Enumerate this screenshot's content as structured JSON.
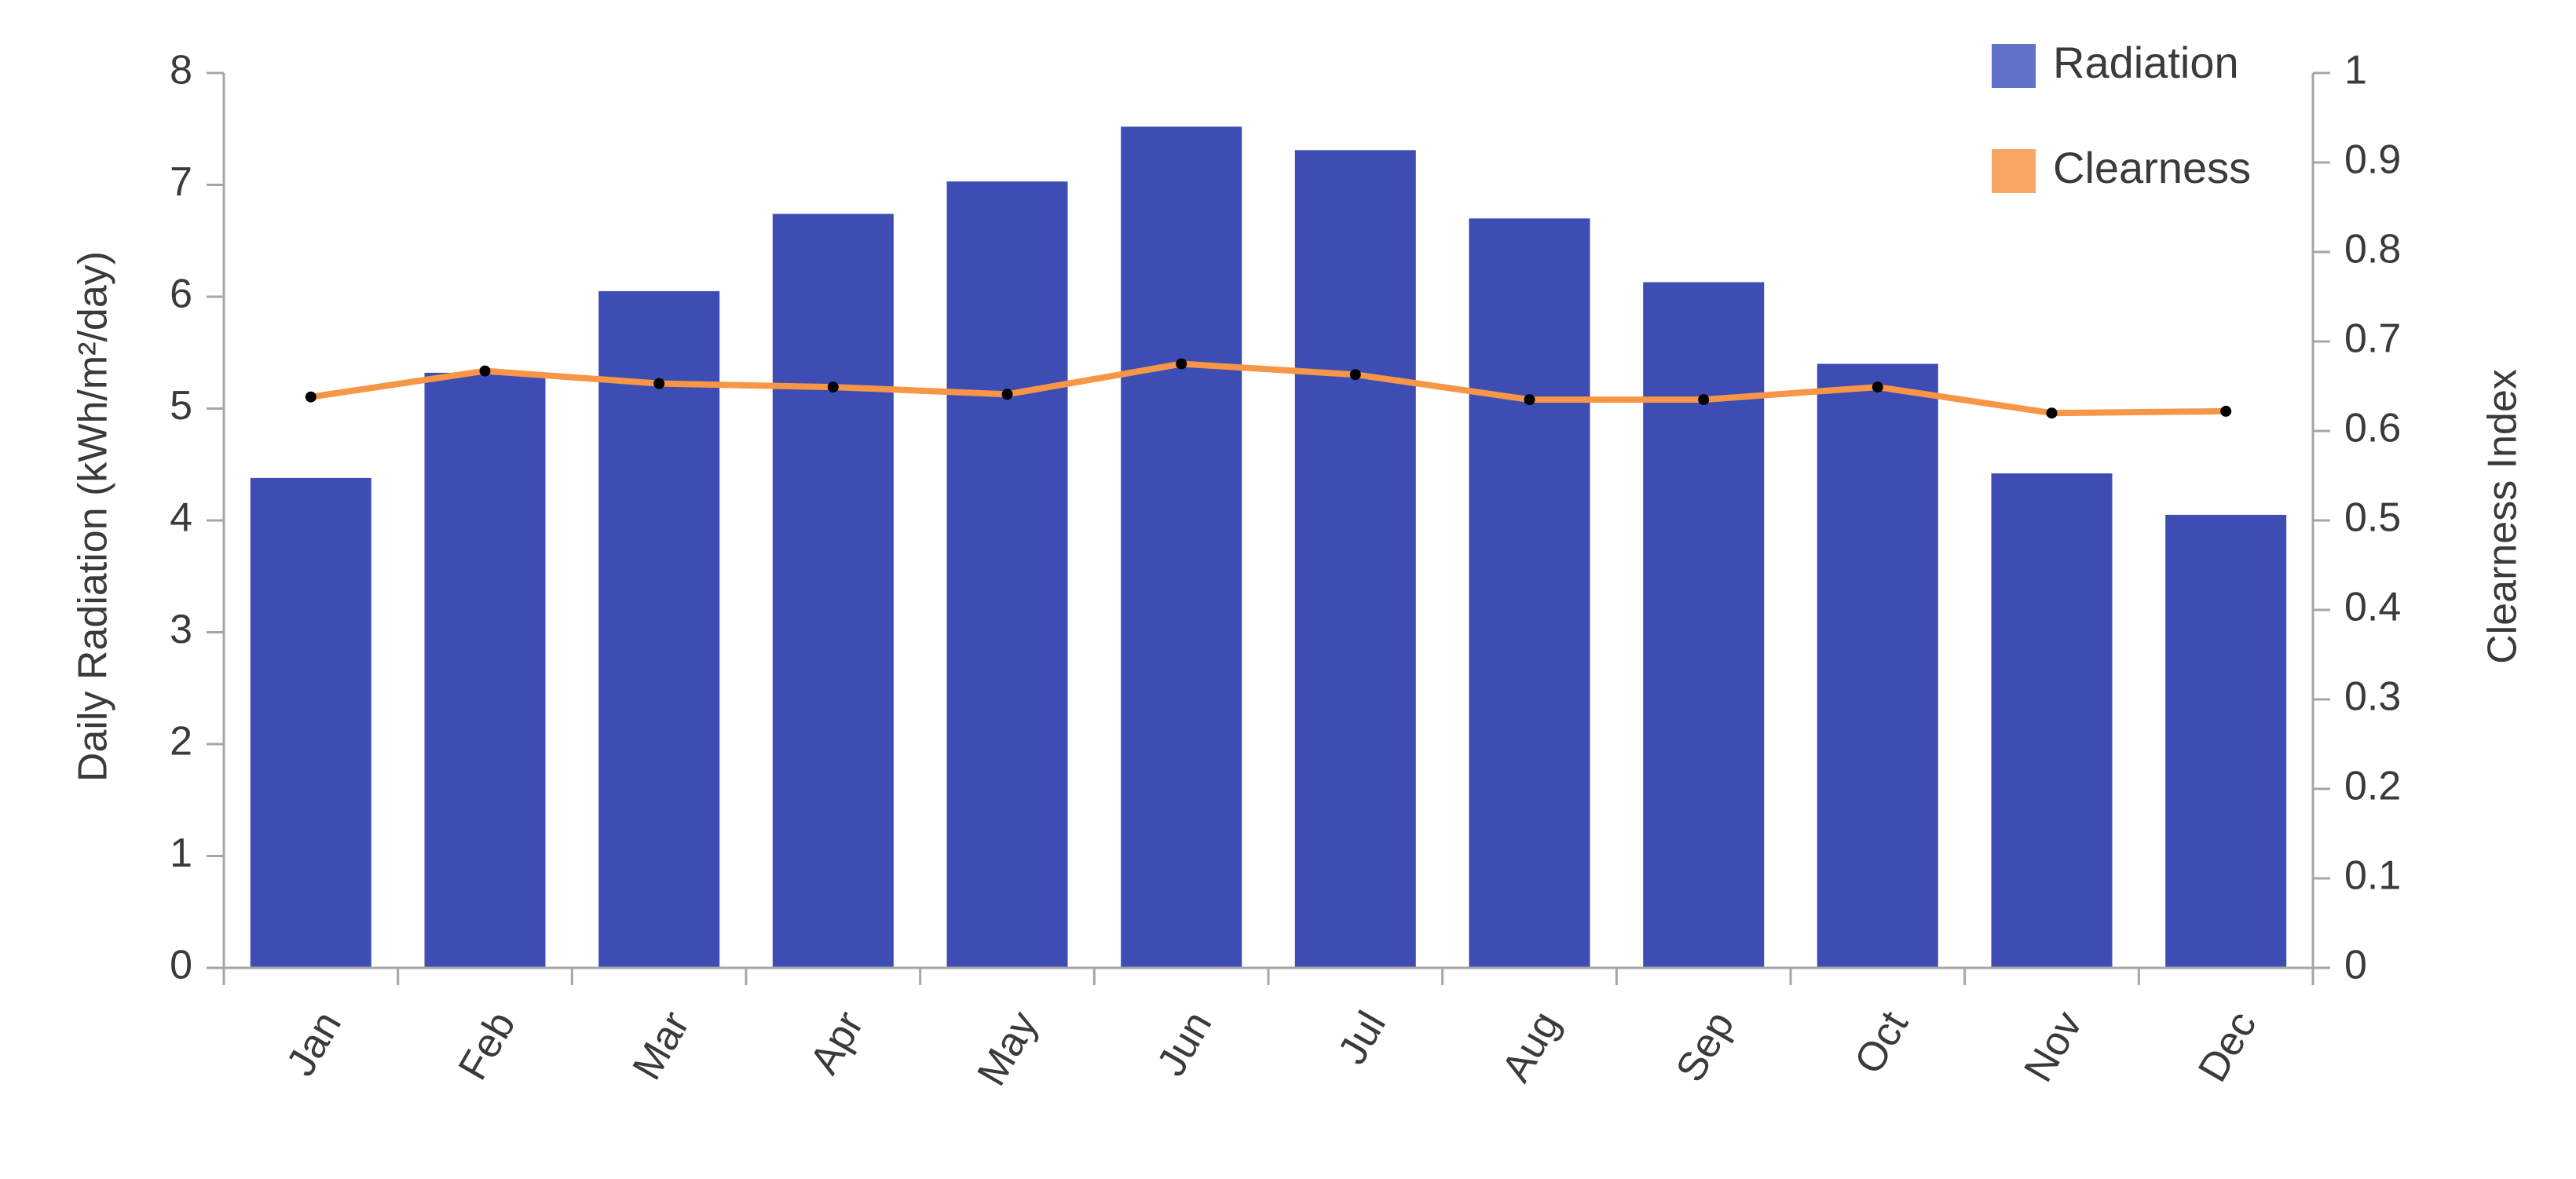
{
  "chart_data": {
    "type": "bar",
    "categories": [
      "Jan",
      "Feb",
      "Mar",
      "Apr",
      "May",
      "Jun",
      "Jul",
      "Aug",
      "Sep",
      "Oct",
      "Nov",
      "Dec"
    ],
    "series": [
      {
        "name": "Radiation",
        "type": "bar",
        "axis": "left",
        "values": [
          4.38,
          5.32,
          6.05,
          6.74,
          7.03,
          7.52,
          7.31,
          6.7,
          6.13,
          5.4,
          4.42,
          4.05
        ],
        "color": "#3d4db3"
      },
      {
        "name": "Clearness",
        "type": "line",
        "axis": "right",
        "values": [
          0.638,
          0.667,
          0.653,
          0.649,
          0.641,
          0.675,
          0.663,
          0.635,
          0.635,
          0.649,
          0.62,
          0.622
        ],
        "color": "#f79646",
        "marker_color": "#000000"
      }
    ],
    "ylabel_left": "Daily Radiation (kWh/m²/day)",
    "ylabel_right": "Clearness Index",
    "ylim_left": [
      0,
      8
    ],
    "ylim_right": [
      0,
      1
    ],
    "yticks_left": [
      "0",
      "1",
      "2",
      "3",
      "4",
      "5",
      "6",
      "7",
      "8"
    ],
    "yticks_right": [
      "0",
      "0.1",
      "0.2",
      "0.3",
      "0.4",
      "0.5",
      "0.6",
      "0.7",
      "0.8",
      "0.9",
      "1"
    ],
    "grid": false,
    "legend": {
      "placement": "top-right",
      "entries": [
        {
          "label": "Radiation",
          "color": "#6172c8"
        },
        {
          "label": "Clearness",
          "color": "#f9a565"
        }
      ]
    }
  }
}
